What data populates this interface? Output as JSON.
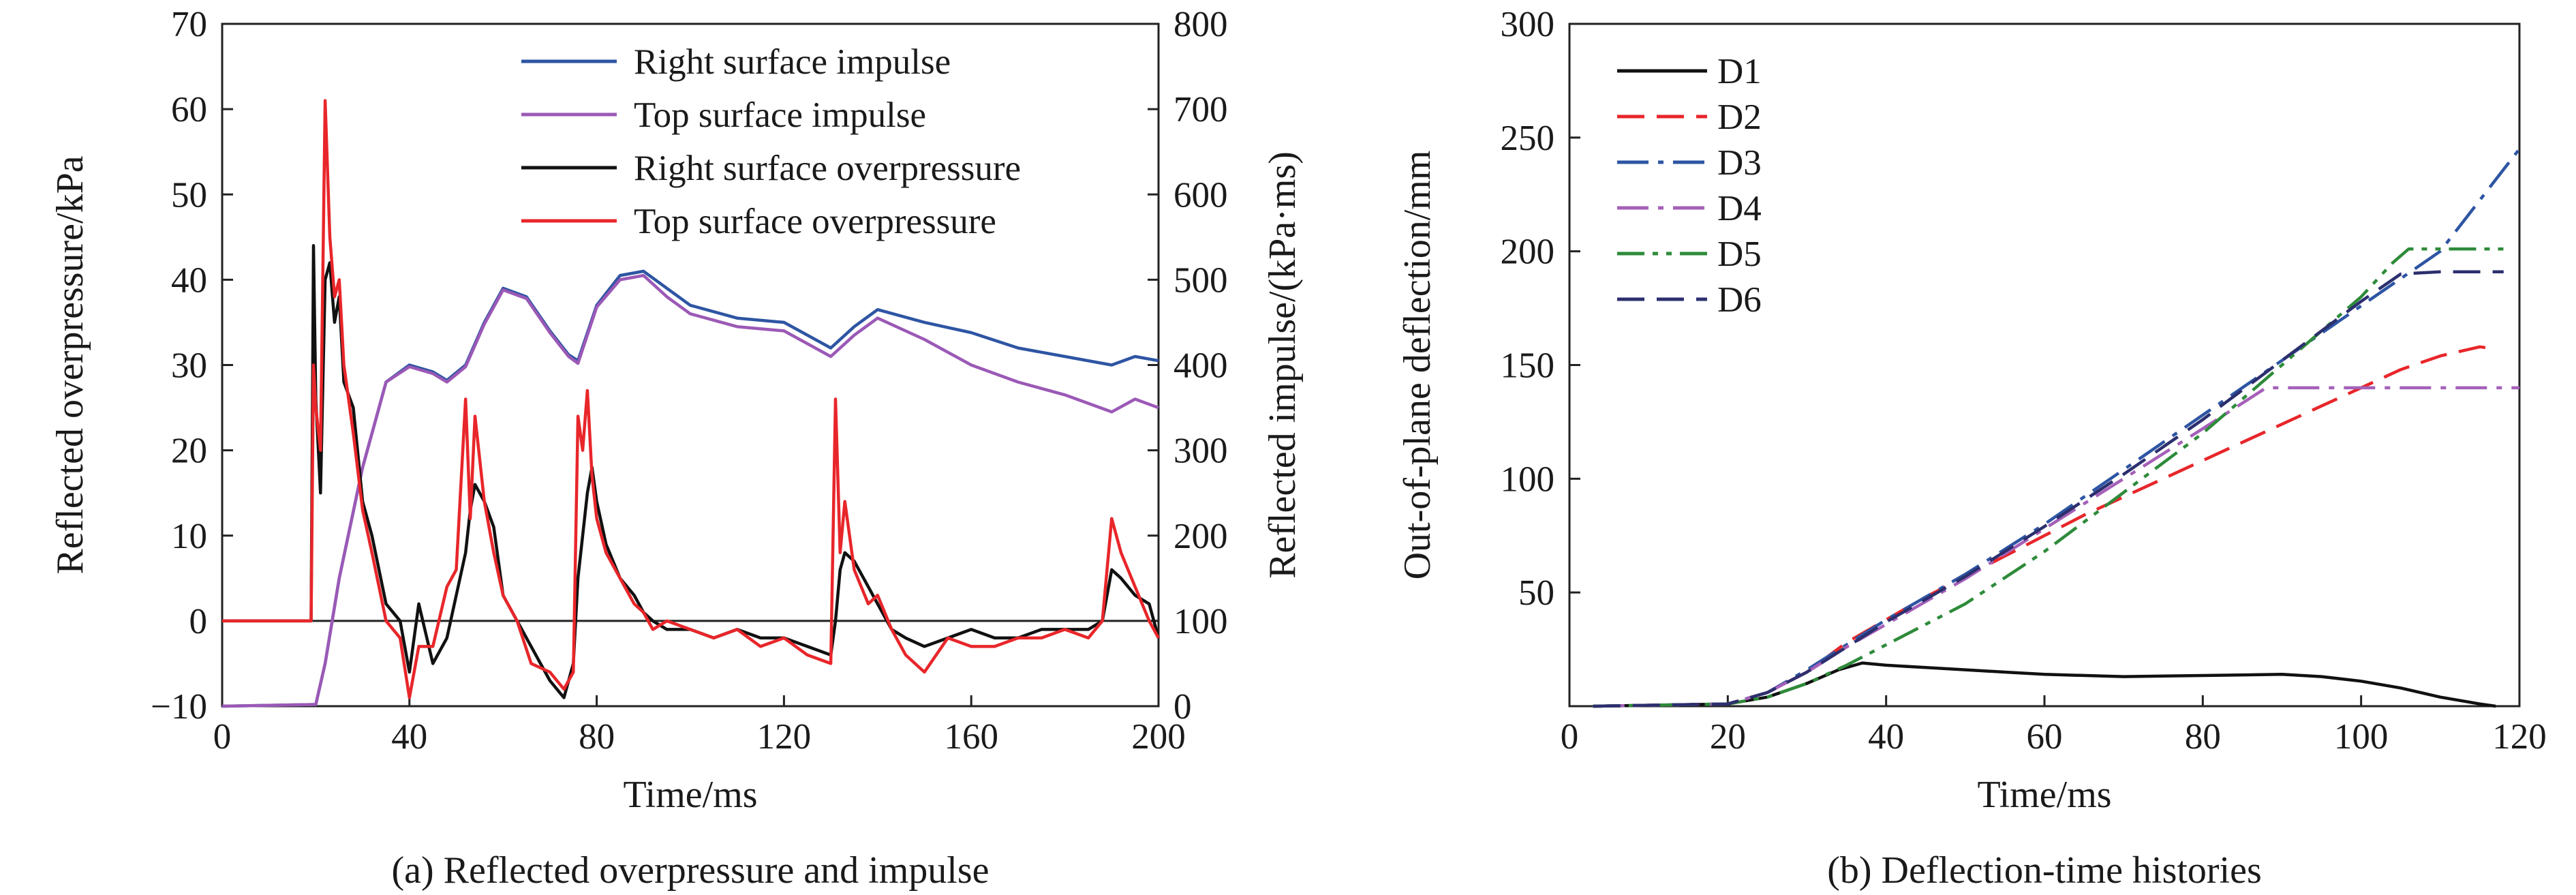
{
  "chart_data": [
    {
      "type": "line",
      "caption": "(a) Reflected overpressure and impulse",
      "title": "",
      "xlabel": "Time/ms",
      "ylabel": "Reflected overpressure/kPa",
      "y2label": "Reflected impulse/(kPa·ms)",
      "xlim": [
        0,
        200
      ],
      "ylim": [
        -10,
        70
      ],
      "y2lim": [
        0,
        800
      ],
      "xticks": [
        "0",
        "40",
        "80",
        "120",
        "160",
        "200"
      ],
      "yticks": [
        "−10",
        "0",
        "10",
        "20",
        "30",
        "40",
        "50",
        "60",
        "70"
      ],
      "y2ticks": [
        "0",
        "100",
        "200",
        "300",
        "400",
        "500",
        "600",
        "700",
        "800"
      ],
      "grid": false,
      "legend_position": "top-right",
      "series": [
        {
          "name": "Right surface impulse",
          "axis": "right",
          "color": "#2e55a3",
          "style": "solid",
          "x": [
            0,
            20,
            22,
            25,
            30,
            35,
            40,
            45,
            48,
            52,
            56,
            60,
            65,
            70,
            74,
            76,
            80,
            85,
            90,
            95,
            100,
            110,
            120,
            130,
            135,
            140,
            150,
            160,
            170,
            180,
            190,
            195,
            200
          ],
          "y": [
            0,
            2,
            50,
            150,
            280,
            380,
            400,
            392,
            382,
            400,
            450,
            490,
            480,
            440,
            412,
            405,
            470,
            505,
            510,
            490,
            470,
            455,
            450,
            420,
            445,
            465,
            450,
            438,
            420,
            410,
            400,
            410,
            405
          ]
        },
        {
          "name": "Top surface impulse",
          "axis": "right",
          "color": "#9b59b6",
          "style": "solid",
          "x": [
            0,
            20,
            22,
            25,
            30,
            35,
            40,
            45,
            48,
            52,
            56,
            60,
            65,
            70,
            74,
            76,
            80,
            85,
            90,
            95,
            100,
            110,
            120,
            130,
            135,
            140,
            150,
            160,
            170,
            180,
            190,
            195,
            200
          ],
          "y": [
            0,
            2,
            50,
            150,
            280,
            380,
            398,
            390,
            380,
            398,
            448,
            488,
            478,
            438,
            410,
            402,
            468,
            500,
            505,
            480,
            460,
            445,
            440,
            410,
            435,
            455,
            430,
            400,
            380,
            365,
            345,
            360,
            350
          ]
        },
        {
          "name": "Right surface overpressure",
          "axis": "left",
          "color": "#111111",
          "style": "solid",
          "x": [
            0,
            19,
            19.5,
            20,
            21,
            22,
            23,
            24,
            25,
            26,
            28,
            30,
            32,
            35,
            38,
            40,
            42,
            45,
            48,
            50,
            52,
            53,
            54,
            56,
            58,
            60,
            63,
            66,
            70,
            73,
            75,
            76,
            77,
            78,
            79,
            80,
            82,
            85,
            88,
            90,
            92,
            95,
            100,
            105,
            110,
            115,
            120,
            125,
            130,
            131,
            132,
            133,
            135,
            138,
            140,
            143,
            146,
            150,
            155,
            160,
            165,
            170,
            175,
            180,
            185,
            188,
            190,
            192,
            195,
            198,
            200
          ],
          "y": [
            0,
            0,
            44,
            26,
            15,
            40,
            42,
            35,
            38,
            28,
            25,
            14,
            10,
            2,
            0,
            -6,
            2,
            -5,
            -2,
            3,
            8,
            13,
            16,
            14,
            11,
            3,
            0,
            -3,
            -7,
            -9,
            -5,
            5,
            10,
            15,
            18,
            14,
            9,
            5,
            3,
            1,
            0,
            -1,
            -1,
            -2,
            -1,
            -2,
            -2,
            -3,
            -4,
            0,
            6,
            8,
            7,
            4,
            2,
            -1,
            -2,
            -3,
            -2,
            -1,
            -2,
            -2,
            -1,
            -1,
            -1,
            0,
            6,
            5,
            3,
            2,
            -2
          ]
        },
        {
          "name": "Top surface overpressure",
          "axis": "left",
          "color": "#e8262a",
          "style": "solid",
          "x": [
            0,
            19,
            19.5,
            20,
            21,
            22,
            23,
            24,
            25,
            26,
            28,
            30,
            32,
            35,
            38,
            40,
            42,
            45,
            48,
            50,
            52,
            53,
            54,
            56,
            58,
            60,
            63,
            66,
            70,
            73,
            75,
            76,
            77,
            78,
            79,
            80,
            82,
            85,
            88,
            90,
            92,
            95,
            100,
            105,
            110,
            115,
            120,
            125,
            130,
            131,
            132,
            133,
            135,
            138,
            140,
            143,
            146,
            150,
            155,
            160,
            165,
            170,
            175,
            180,
            185,
            188,
            190,
            192,
            195,
            198,
            200
          ],
          "y": [
            0,
            0,
            30,
            25,
            20,
            61,
            45,
            38,
            40,
            30,
            22,
            13,
            8,
            0,
            -2,
            -9,
            -3,
            -3,
            4,
            6,
            26,
            12,
            24,
            14,
            8,
            3,
            0,
            -5,
            -6,
            -8,
            -6,
            24,
            20,
            27,
            17,
            12,
            8,
            5,
            2,
            1,
            -1,
            0,
            -1,
            -2,
            -1,
            -3,
            -2,
            -4,
            -5,
            26,
            8,
            14,
            6,
            2,
            3,
            -1,
            -4,
            -6,
            -2,
            -3,
            -3,
            -2,
            -2,
            -1,
            -2,
            0,
            12,
            8,
            4,
            0,
            -2
          ]
        }
      ]
    },
    {
      "type": "line",
      "caption": "(b) Deflection-time histories",
      "title": "",
      "xlabel": "Time/ms",
      "ylabel": "Out-of-plane deflection/mm",
      "xlim": [
        0,
        120
      ],
      "ylim": [
        0,
        300
      ],
      "xticks": [
        "0",
        "20",
        "40",
        "60",
        "80",
        "100",
        "120"
      ],
      "yticks": [
        "50",
        "100",
        "150",
        "200",
        "250",
        "300"
      ],
      "grid": false,
      "legend_position": "top-left",
      "series": [
        {
          "name": "D1",
          "color": "#111111",
          "style": "solid",
          "x": [
            3,
            20,
            25,
            30,
            34,
            37,
            40,
            45,
            50,
            55,
            60,
            70,
            80,
            90,
            95,
            100,
            105,
            110,
            115,
            117
          ],
          "y": [
            0,
            1,
            4,
            10,
            16,
            19,
            18,
            17,
            16,
            15,
            14,
            13,
            13.5,
            14,
            13,
            11,
            8,
            4,
            1,
            0
          ]
        },
        {
          "name": "D2",
          "color": "#e8262a",
          "style": "dash",
          "x": [
            3,
            20,
            25,
            30,
            35,
            40,
            45,
            50,
            55,
            60,
            65,
            70,
            75,
            80,
            85,
            90,
            95,
            100,
            105,
            110,
            115,
            117
          ],
          "y": [
            0,
            1,
            6,
            15,
            28,
            38,
            48,
            57,
            66,
            75,
            84,
            92,
            100,
            108,
            116,
            124,
            132,
            140,
            148,
            154,
            158,
            157
          ]
        },
        {
          "name": "D3",
          "color": "#2e55a3",
          "style": "dashdot",
          "x": [
            3,
            20,
            25,
            30,
            35,
            40,
            50,
            60,
            70,
            80,
            90,
            100,
            110,
            120
          ],
          "y": [
            0,
            1,
            6,
            16,
            27,
            38,
            58,
            80,
            104,
            128,
            152,
            176,
            200,
            245
          ]
        },
        {
          "name": "D4",
          "color": "#a560b8",
          "style": "dashdot",
          "x": [
            3,
            20,
            25,
            30,
            35,
            40,
            50,
            60,
            70,
            80,
            88,
            90,
            100,
            110,
            120
          ],
          "y": [
            0,
            1,
            6,
            15,
            26,
            36,
            56,
            78,
            100,
            122,
            140,
            140,
            140,
            140,
            140
          ]
        },
        {
          "name": "D5",
          "color": "#2e8b3a",
          "style": "dashdotdot",
          "x": [
            3,
            20,
            25,
            30,
            35,
            40,
            50,
            60,
            70,
            80,
            90,
            100,
            104,
            106,
            110,
            118
          ],
          "y": [
            0,
            1,
            4,
            10,
            18,
            27,
            45,
            68,
            94,
            120,
            150,
            180,
            195,
            201,
            201,
            201
          ]
        },
        {
          "name": "D6",
          "color": "#2c2f6e",
          "style": "dash",
          "x": [
            3,
            20,
            25,
            30,
            35,
            40,
            50,
            60,
            70,
            80,
            90,
            100,
            105,
            110,
            118
          ],
          "y": [
            0,
            1,
            6,
            15,
            26,
            37,
            57,
            79,
            102,
            126,
            152,
            178,
            190,
            191,
            191
          ]
        }
      ]
    }
  ]
}
